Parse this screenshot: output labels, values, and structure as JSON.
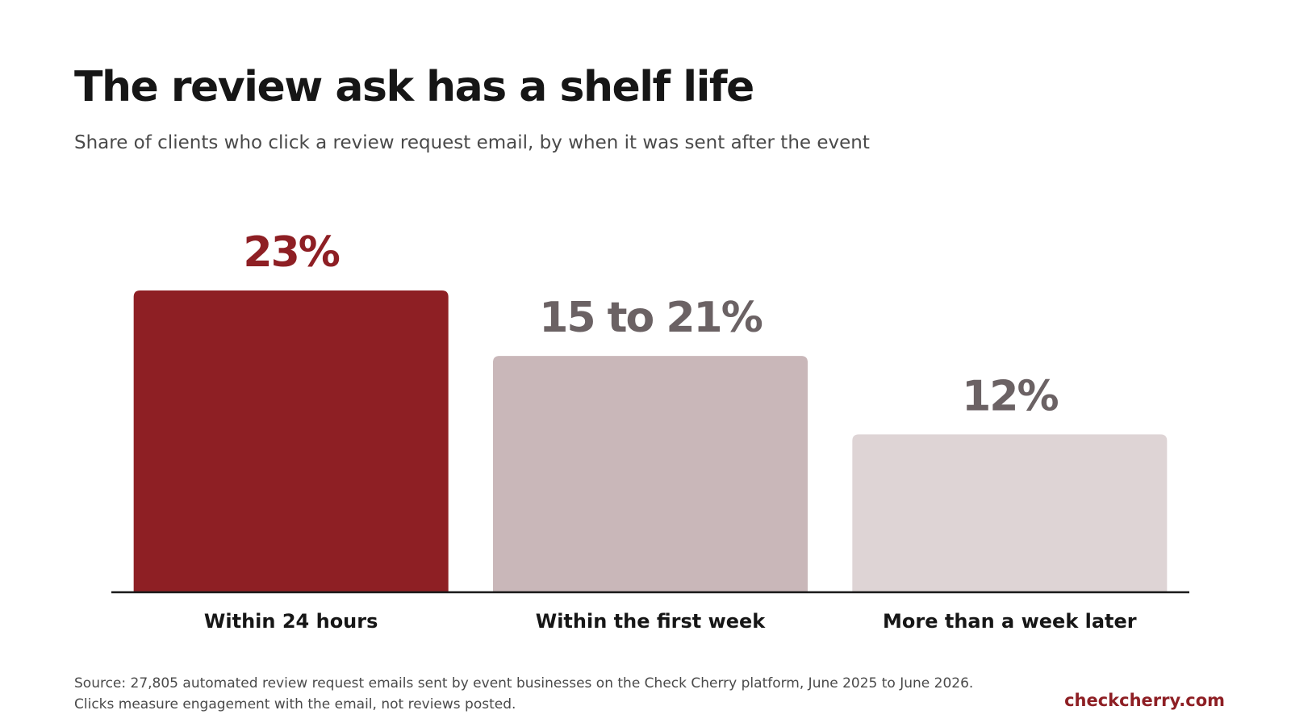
{
  "header": {
    "title": "The review ask has a shelf life",
    "subtitle": "Share of clients who click a review request email, by when it was sent after the event"
  },
  "chart_data": {
    "type": "bar",
    "categories": [
      "Within 24 hours",
      "Within the first week",
      "More than a week later"
    ],
    "values": [
      23,
      18,
      12
    ],
    "value_labels": [
      "23%",
      "15 to 21%",
      "12%"
    ],
    "ylim": [
      0,
      23
    ],
    "grid": false,
    "bar_colors": [
      "#8e1f24",
      "#c9b7b9",
      "#ded4d5"
    ],
    "label_colors": [
      "#8e1f24",
      "#6b6264",
      "#6b6264"
    ],
    "axis_color": "#1a1a1a"
  },
  "footer": {
    "source_line1": "Source: 27,805 automated review request emails sent by event businesses on the Check Cherry platform, June 2025 to June 2026.",
    "source_line2": "Clicks measure engagement with the email, not reviews posted.",
    "brand": "checkcherry.com"
  }
}
